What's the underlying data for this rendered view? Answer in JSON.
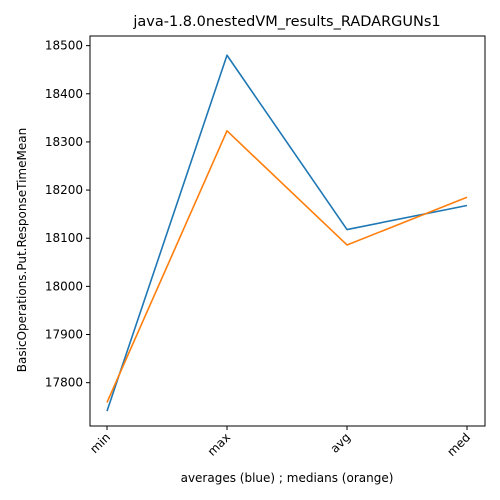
{
  "chart_data": {
    "type": "line",
    "title": "java-1.8.0nestedVM_results_RADARGUNs1",
    "xlabel": "averages (blue) ; medians (orange)",
    "ylabel": "BasicOperations.Put.ResponseTimeMean",
    "categories": [
      "min",
      "max",
      "avg",
      "med"
    ],
    "ylim": [
      17710,
      18520
    ],
    "yticks": [
      17800,
      17900,
      18000,
      18100,
      18200,
      18300,
      18400,
      18500
    ],
    "grid": false,
    "series": [
      {
        "color": "#1f77b4",
        "values": [
          17741,
          18480,
          18118,
          18168
        ]
      },
      {
        "color": "#ff7f0e",
        "values": [
          17759,
          18323,
          18086,
          18185
        ]
      }
    ]
  }
}
